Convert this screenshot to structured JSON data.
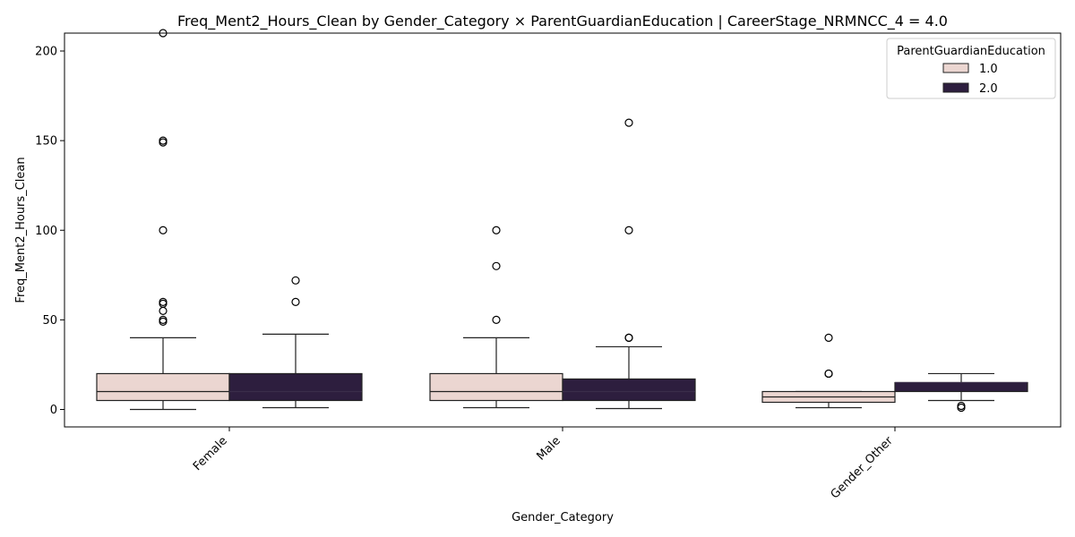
{
  "chart_data": {
    "type": "box",
    "title": "Freq_Ment2_Hours_Clean by Gender_Category × ParentGuardianEducation | CareerStage_NRMNCC_4 = 4.0",
    "xlabel": "Gender_Category",
    "ylabel": "Freq_Ment2_Hours_Clean",
    "categories": [
      "Female",
      "Male",
      "Gender_Other"
    ],
    "ylim": [
      -10,
      220
    ],
    "yticks": [
      0,
      50,
      100,
      150,
      200
    ],
    "grid": false,
    "legend": {
      "title": "ParentGuardianEducation",
      "placement": "top-right"
    },
    "series": [
      {
        "name": "1.0",
        "color": "#ebd6d1",
        "boxes": [
          {
            "category": "Female",
            "whisker_low": 0,
            "q1": 5,
            "median": 10,
            "q3": 20,
            "whisker_high": 40,
            "outliers": [
              210,
              150,
              149,
              100,
              60,
              59,
              55,
              50,
              49
            ]
          },
          {
            "category": "Male",
            "whisker_low": 1,
            "q1": 5,
            "median": 10,
            "q3": 20,
            "whisker_high": 40,
            "outliers": [
              100,
              80,
              50
            ]
          },
          {
            "category": "Gender_Other",
            "whisker_low": 1,
            "q1": 4,
            "median": 7,
            "q3": 10,
            "whisker_high": 10,
            "outliers": [
              40,
              20,
              20
            ]
          }
        ]
      },
      {
        "name": "2.0",
        "color": "#2d1e3e",
        "boxes": [
          {
            "category": "Female",
            "whisker_low": 1,
            "q1": 5,
            "median": 10,
            "q3": 20,
            "whisker_high": 42,
            "outliers": [
              72,
              60
            ]
          },
          {
            "category": "Male",
            "whisker_low": 0.5,
            "q1": 5,
            "median": 10,
            "q3": 17,
            "whisker_high": 35,
            "outliers": [
              160,
              100,
              40,
              40
            ]
          },
          {
            "category": "Gender_Other",
            "whisker_low": 5,
            "q1": 10,
            "median": 15,
            "q3": 15,
            "whisker_high": 20,
            "outliers": [
              2,
              1
            ]
          }
        ]
      }
    ]
  }
}
